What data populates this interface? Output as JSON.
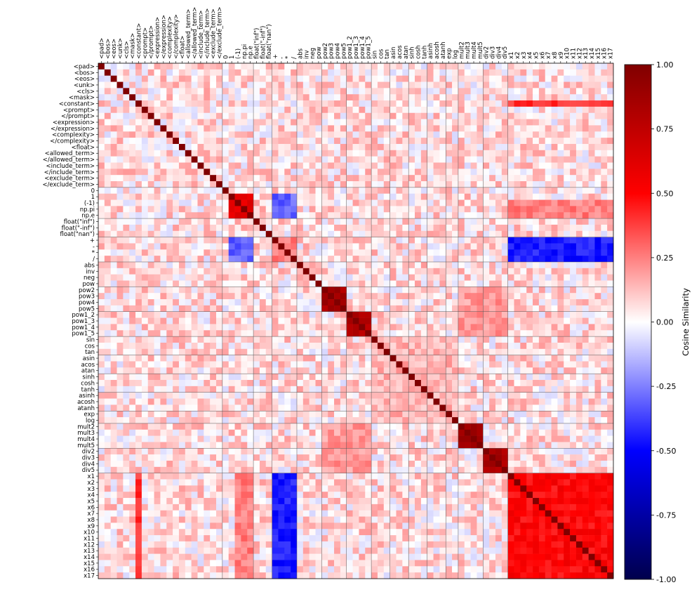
{
  "chart_data": {
    "type": "heatmap",
    "title": "",
    "xlabel": "",
    "ylabel": "",
    "colorbar": {
      "label": "Cosine Similarity",
      "range": [
        -1.0,
        1.0
      ],
      "ticks": [
        "-1.00",
        "-0.75",
        "-0.50",
        "-0.25",
        "0.00",
        "0.25",
        "0.50",
        "0.75",
        "1.00"
      ],
      "colormap": "seismic",
      "colors": [
        "#00004c",
        "#0000ff",
        "#ffffff",
        "#ff0000",
        "#800000"
      ]
    },
    "tokens": [
      "<pad>",
      "<bos>",
      "<eos>",
      "<unk>",
      "<cls>",
      "<mask>",
      "<constant>",
      "<prompt>",
      "</prompt>",
      "<expression>",
      "</expression>",
      "<complexity>",
      "</complexity>",
      "<float>",
      "<allowed_term>",
      "</allowed_term>",
      "<include_term>",
      "</include_term>",
      "<exclude_term>",
      "</exclude_term>",
      "0",
      "1",
      "(-1)",
      "np.pi",
      "np.e",
      "float(\"inf\")",
      "float(\"-inf\")",
      "float(\"nan\")",
      "+",
      "-",
      "*",
      "/",
      "abs",
      "inv",
      "neg",
      "pow",
      "pow2",
      "pow3",
      "pow4",
      "pow5",
      "pow1_2",
      "pow1_3",
      "pow1_4",
      "pow1_5",
      "sin",
      "cos",
      "tan",
      "asin",
      "acos",
      "atan",
      "sinh",
      "cosh",
      "tanh",
      "asinh",
      "acosh",
      "atanh",
      "exp",
      "log",
      "mult2",
      "mult3",
      "mult4",
      "mult5",
      "div2",
      "div3",
      "div4",
      "div5",
      "x1",
      "x2",
      "x3",
      "x4",
      "x5",
      "x6",
      "x7",
      "x8",
      "x9",
      "x10",
      "x11",
      "x12",
      "x13",
      "x14",
      "x15",
      "x16",
      "x17"
    ],
    "group_boundaries": [
      20,
      25,
      28,
      32,
      36,
      40,
      44,
      47,
      50,
      53,
      56,
      58,
      62,
      66
    ],
    "blocks": [
      {
        "rows": [
          36,
          39
        ],
        "cols": [
          36,
          39
        ],
        "value": 0.85
      },
      {
        "rows": [
          40,
          43
        ],
        "cols": [
          40,
          43
        ],
        "value": 0.8
      },
      {
        "rows": [
          58,
          61
        ],
        "cols": [
          58,
          61
        ],
        "value": 0.85
      },
      {
        "rows": [
          62,
          65
        ],
        "cols": [
          62,
          65
        ],
        "value": 0.85
      },
      {
        "rows": [
          66,
          82
        ],
        "cols": [
          66,
          82
        ],
        "value": 0.5
      },
      {
        "rows": [
          21,
          24
        ],
        "cols": [
          21,
          24
        ],
        "value": 0.6
      },
      {
        "rows": [
          28,
          31
        ],
        "cols": [
          28,
          31
        ],
        "value": 0.25
      },
      {
        "rows": [
          28,
          31
        ],
        "cols": [
          66,
          82
        ],
        "value": -0.45
      },
      {
        "rows": [
          66,
          82
        ],
        "cols": [
          28,
          31
        ],
        "value": -0.45
      },
      {
        "rows": [
          6,
          6
        ],
        "cols": [
          66,
          82
        ],
        "value": 0.4
      },
      {
        "rows": [
          66,
          82
        ],
        "cols": [
          6,
          6
        ],
        "value": 0.4
      },
      {
        "rows": [
          22,
          24
        ],
        "cols": [
          66,
          82
        ],
        "value": 0.25
      },
      {
        "rows": [
          66,
          82
        ],
        "cols": [
          22,
          24
        ],
        "value": 0.25
      },
      {
        "rows": [
          44,
          57
        ],
        "cols": [
          44,
          57
        ],
        "value": 0.15
      },
      {
        "rows": [
          36,
          43
        ],
        "cols": [
          58,
          65
        ],
        "value": 0.2
      },
      {
        "rows": [
          58,
          65
        ],
        "cols": [
          36,
          43
        ],
        "value": 0.2
      },
      {
        "rows": [
          28,
          31
        ],
        "cols": [
          21,
          24
        ],
        "value": -0.3
      },
      {
        "rows": [
          21,
          24
        ],
        "cols": [
          28,
          31
        ],
        "value": -0.3
      }
    ],
    "diagonal_value": 1.0
  }
}
